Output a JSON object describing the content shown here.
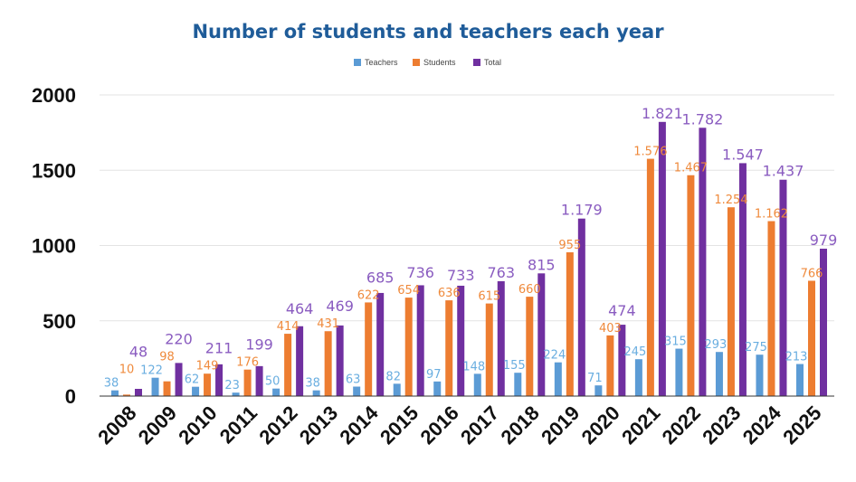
{
  "chart_data": {
    "type": "bar",
    "title": "Number of students and teachers each year",
    "xlabel": "",
    "ylabel": "",
    "ylim": [
      0,
      2000
    ],
    "yticks": [
      0,
      500,
      1000,
      1500,
      2000
    ],
    "grid": true,
    "legend_position": "top-center",
    "categories": [
      "2008",
      "2009",
      "2010",
      "2011",
      "2012",
      "2013",
      "2014",
      "2015",
      "2016",
      "2017",
      "2018",
      "2019",
      "2020",
      "2021",
      "2022",
      "2023",
      "2024",
      "2025"
    ],
    "series": [
      {
        "name": "Teachers",
        "color": "#5b9bd5",
        "label_color": "#6aaee0",
        "values": [
          38,
          122,
          62,
          23,
          50,
          38,
          63,
          82,
          97,
          148,
          155,
          224,
          71,
          245,
          315,
          293,
          275,
          213
        ]
      },
      {
        "name": "Students",
        "color": "#ed7d31",
        "label_color": "#ef8a3c",
        "values": [
          10,
          98,
          149,
          176,
          414,
          431,
          622,
          654,
          636,
          615,
          660,
          955,
          403,
          1576,
          1467,
          1254,
          1162,
          766
        ]
      },
      {
        "name": "Total",
        "color": "#7030a0",
        "label_color": "#8a5cc0",
        "values": [
          48,
          220,
          211,
          199,
          464,
          469,
          685,
          736,
          733,
          763,
          815,
          1179,
          474,
          1821,
          1782,
          1547,
          1437,
          979
        ]
      }
    ],
    "thousands_separator": "."
  }
}
